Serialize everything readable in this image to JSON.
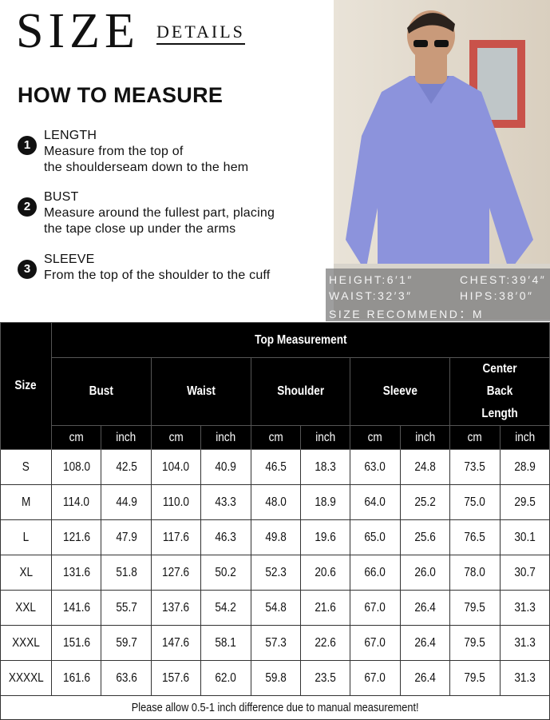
{
  "header": {
    "size": "SIZE",
    "details": "DETAILS",
    "how_to": "HOW TO MEASURE"
  },
  "steps": [
    {
      "num": "1",
      "title": "LENGTH",
      "lines": [
        "Measure from the top of",
        "the shoulderseam down to the hem"
      ]
    },
    {
      "num": "2",
      "title": "BUST",
      "lines": [
        "Measure around the fullest part, placing",
        "the tape close up under the arms"
      ]
    },
    {
      "num": "3",
      "title": "SLEEVE",
      "lines": [
        "From the top of the shoulder to the cuff"
      ]
    }
  ],
  "model": {
    "height": "HEIGHT:6′1″",
    "chest": "CHEST:39′4″",
    "waist": "WAIST:32′3″",
    "hips": "HIPS:38′0″",
    "recommend": "SIZE RECOMMEND：M"
  },
  "table": {
    "size_header": "Size",
    "group_header": "Top Measurement",
    "columns": [
      "Bust",
      "Waist",
      "Shoulder",
      "Sleeve",
      "Center Back Length"
    ],
    "units": [
      "cm",
      "inch"
    ],
    "rows": [
      [
        "S",
        "108.0",
        "42.5",
        "104.0",
        "40.9",
        "46.5",
        "18.3",
        "63.0",
        "24.8",
        "73.5",
        "28.9"
      ],
      [
        "M",
        "114.0",
        "44.9",
        "110.0",
        "43.3",
        "48.0",
        "18.9",
        "64.0",
        "25.2",
        "75.0",
        "29.5"
      ],
      [
        "L",
        "121.6",
        "47.9",
        "117.6",
        "46.3",
        "49.8",
        "19.6",
        "65.0",
        "25.6",
        "76.5",
        "30.1"
      ],
      [
        "XL",
        "131.6",
        "51.8",
        "127.6",
        "50.2",
        "52.3",
        "20.6",
        "66.0",
        "26.0",
        "78.0",
        "30.7"
      ],
      [
        "XXL",
        "141.6",
        "55.7",
        "137.6",
        "54.2",
        "54.8",
        "21.6",
        "67.0",
        "26.4",
        "79.5",
        "31.3"
      ],
      [
        "XXXL",
        "151.6",
        "59.7",
        "147.6",
        "58.1",
        "57.3",
        "22.6",
        "67.0",
        "26.4",
        "79.5",
        "31.3"
      ],
      [
        "XXXXL",
        "161.6",
        "63.6",
        "157.6",
        "62.0",
        "59.8",
        "23.5",
        "67.0",
        "26.4",
        "79.5",
        "31.3"
      ]
    ],
    "footnote": "Please allow 0.5-1 inch difference due to manual measurement!"
  }
}
